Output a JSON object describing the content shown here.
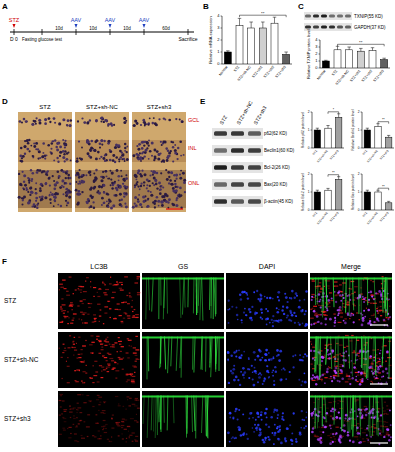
{
  "panel_letters": [
    "A",
    "B",
    "C",
    "D",
    "E",
    "F"
  ],
  "timeline": {
    "top_labels": [
      {
        "text": "STZ",
        "color": "#d00000"
      },
      {
        "text": "AAV",
        "color": "#2040c0"
      },
      {
        "text": "AAV",
        "color": "#2040c0"
      },
      {
        "text": "AAV",
        "color": "#2040c0"
      }
    ],
    "day_label": "D 0",
    "test_label": "Fasting glucose test",
    "intervals": [
      "10d",
      "10d",
      "10d",
      "60d"
    ],
    "end_label": "Sacrifice"
  },
  "blot_C": {
    "bands": [
      "TXNIP(55 KD)",
      "GAPDH(37 KD)"
    ]
  },
  "histology": {
    "columns": [
      "STZ",
      "STZ+sh-NC",
      "STZ+sh3"
    ],
    "layers": [
      "GCL",
      "INL",
      "ONL"
    ]
  },
  "blot_E": {
    "columns": [
      "STZ",
      "STZ+sh-NC",
      "STZ+sh3"
    ],
    "bands": [
      "p62(62 KD)",
      "Beclin1(60 KD)",
      "Bcl-2(26 KD)",
      "Bax(20 KD)",
      "β-actin(45 KD)"
    ]
  },
  "fluorescence": {
    "columns": [
      "LC3B",
      "GS",
      "DAPI",
      "Merge"
    ],
    "rows": [
      "STZ",
      "STZ+sh-NC",
      "STZ+sh3"
    ]
  },
  "chart_data": [
    {
      "type": "bar",
      "y_label": "Relative mRNA expression",
      "categories": [
        "Normal",
        "STZ",
        "STZ+sh-NC",
        "STZ+sh1",
        "STZ+sh2",
        "STZ+sh3"
      ],
      "values": [
        1.0,
        3.2,
        3.0,
        3.0,
        3.4,
        0.8
      ],
      "errors": [
        0.1,
        0.6,
        0.5,
        0.5,
        0.5,
        0.2
      ],
      "colors": [
        "#000000",
        "#ffffff",
        "#ffffff",
        "#d0d0d0",
        "#ffffff",
        "#606060"
      ],
      "ylim": [
        0,
        4
      ],
      "yticks": [
        0,
        1,
        2,
        3,
        4
      ],
      "annotations": [
        "**"
      ]
    },
    {
      "type": "bar",
      "y_label": "Relative TXNIP protein level",
      "categories": [
        "Normal",
        "STZ",
        "STZ+sh-NC",
        "STZ+sh1",
        "STZ+sh2",
        "STZ+sh3"
      ],
      "values": [
        1.0,
        2.6,
        2.6,
        2.4,
        2.5,
        1.2
      ],
      "errors": [
        0.1,
        0.5,
        0.4,
        0.4,
        0.4,
        0.2
      ],
      "colors": [
        "#000000",
        "#ffffff",
        "#ffffff",
        "#d0d0d0",
        "#ffffff",
        "#606060"
      ],
      "ylim": [
        0,
        4
      ],
      "yticks": [
        0,
        1,
        2,
        3,
        4
      ],
      "annotations": [
        "**"
      ]
    },
    {
      "type": "bar",
      "y_label": "Relative p62 protein level",
      "categories": [
        "STZ",
        "STZ+sh-NC",
        "STZ+sh3"
      ],
      "values": [
        1.0,
        1.1,
        1.7
      ],
      "errors": [
        0.1,
        0.15,
        0.2
      ],
      "colors": [
        "#000000",
        "#ffffff",
        "#a0a0a0"
      ],
      "ylim": [
        0,
        2
      ],
      "yticks": [
        0,
        1,
        2
      ],
      "annotations": [
        "*"
      ]
    },
    {
      "type": "bar",
      "y_label": "Relative Beclin1 protein level",
      "categories": [
        "STZ",
        "STZ+sh-NC",
        "STZ+sh3"
      ],
      "values": [
        1.0,
        1.2,
        0.6
      ],
      "errors": [
        0.1,
        0.15,
        0.1
      ],
      "colors": [
        "#000000",
        "#ffffff",
        "#a0a0a0"
      ],
      "ylim": [
        0,
        2
      ],
      "yticks": [
        0,
        1,
        2
      ],
      "annotations": [
        "**"
      ]
    },
    {
      "type": "bar",
      "y_label": "Relative Bcl-2 protein level",
      "categories": [
        "STZ",
        "STZ+sh-NC",
        "STZ+sh3"
      ],
      "values": [
        1.0,
        1.1,
        1.7
      ],
      "errors": [
        0.1,
        0.1,
        0.15
      ],
      "colors": [
        "#000000",
        "#ffffff",
        "#a0a0a0"
      ],
      "ylim": [
        0,
        2
      ],
      "yticks": [
        0,
        1,
        2
      ],
      "annotations": [
        "**"
      ]
    },
    {
      "type": "bar",
      "y_label": "Relative Bax protein level",
      "categories": [
        "STZ",
        "STZ+sh-NC",
        "STZ+sh3"
      ],
      "values": [
        1.0,
        1.0,
        0.4
      ],
      "errors": [
        0.1,
        0.1,
        0.08
      ],
      "colors": [
        "#000000",
        "#ffffff",
        "#a0a0a0"
      ],
      "ylim": [
        0,
        2
      ],
      "yticks": [
        0,
        1,
        2
      ],
      "annotations": [
        "**"
      ]
    }
  ]
}
